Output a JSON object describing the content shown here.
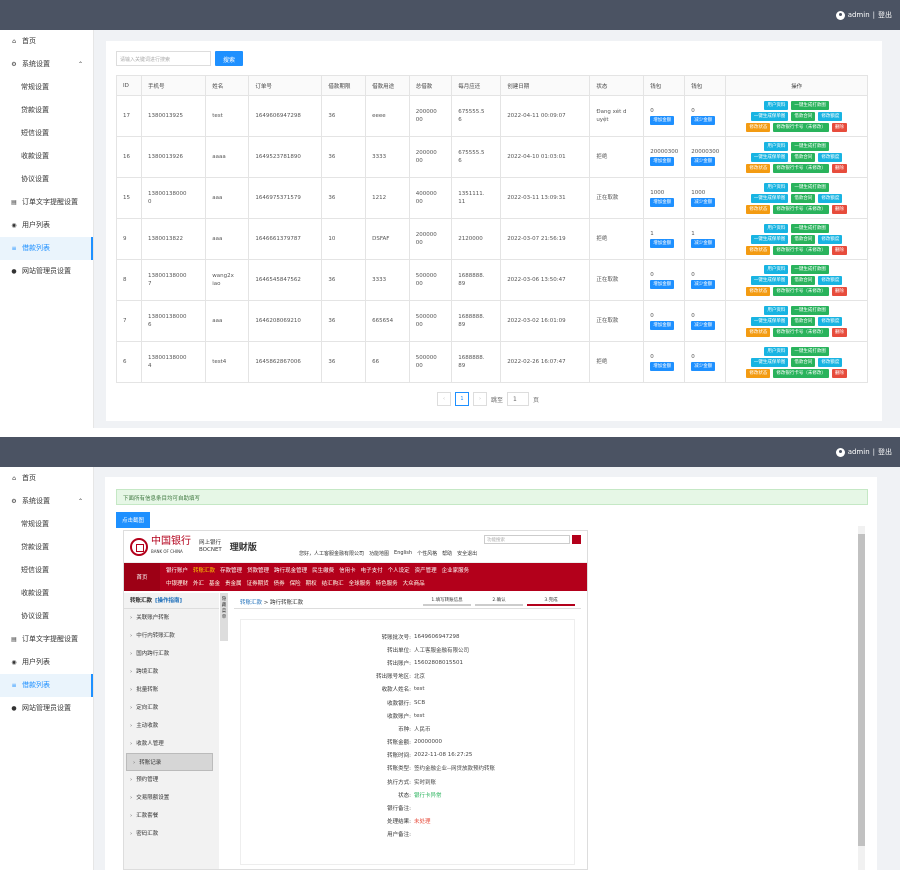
{
  "header": {
    "user": "admin",
    "logout": "登出"
  },
  "sidebar": {
    "items": [
      {
        "label": "首页",
        "icon": "home-icon",
        "sub": false,
        "caret": false,
        "active": false
      },
      {
        "label": "系统设置",
        "icon": "gear-icon",
        "sub": false,
        "caret": true,
        "active": false
      },
      {
        "label": "常规设置",
        "sub": true
      },
      {
        "label": "贷款设置",
        "sub": true
      },
      {
        "label": "短信设置",
        "sub": true
      },
      {
        "label": "收款设置",
        "sub": true
      },
      {
        "label": "协议设置",
        "sub": true
      },
      {
        "label": "订单文字提醒设置",
        "icon": "doc-icon",
        "sub": false
      },
      {
        "label": "用户列表",
        "icon": "eye-icon",
        "sub": false
      },
      {
        "label": "借款列表",
        "icon": "list-icon",
        "sub": false,
        "active": true
      },
      {
        "label": "网站管理员设置",
        "icon": "user-icon",
        "sub": false
      }
    ]
  },
  "screenA": {
    "search": {
      "placeholder": "请输入关键词进行搜索",
      "button": "搜索"
    },
    "columns": [
      "ID",
      "手机号",
      "姓名",
      "订单号",
      "借款期限",
      "借款用途",
      "总借款",
      "每月应还",
      "创建日期",
      "状态",
      "钱包",
      "钱包",
      "操作"
    ],
    "rows": [
      {
        "id": "17",
        "phone": "1380013925",
        "name": "test",
        "order": "1649606947298",
        "term": "36",
        "use": "eeee",
        "total": "200000\n00",
        "monthly": "675555.5\n6",
        "date": "2022-04-11 00:09:07",
        "status": "Đang xét d\nuyệt",
        "w1": "0",
        "w2": "0"
      },
      {
        "id": "16",
        "phone": "1380013926",
        "name": "aaaa",
        "order": "1649523781890",
        "term": "36",
        "use": "3333",
        "total": "200000\n00",
        "monthly": "675555.5\n6",
        "date": "2022-04-10 01:03:01",
        "status": "拒绝",
        "w1": "20000300",
        "w2": "20000300"
      },
      {
        "id": "15",
        "phone": "13800138000\n0",
        "name": "aaa",
        "order": "1646975371579",
        "term": "36",
        "use": "1212",
        "total": "400000\n00",
        "monthly": "1351111.\n11",
        "date": "2022-03-11 13:09:31",
        "status": "正在取款",
        "w1": "1000",
        "w2": "1000"
      },
      {
        "id": "9",
        "phone": "1380013822",
        "name": "aaa",
        "order": "1646661379787",
        "term": "10",
        "use": "DSFAF",
        "total": "200000\n00",
        "monthly": "2120000",
        "date": "2022-03-07 21:56:19",
        "status": "拒绝",
        "w1": "1",
        "w2": "1"
      },
      {
        "id": "8",
        "phone": "13800138000\n7",
        "name": "wang2x\niao",
        "order": "1646545847562",
        "term": "36",
        "use": "3333",
        "total": "500000\n00",
        "monthly": "1688888.\n89",
        "date": "2022-03-06 13:50:47",
        "status": "正在取款",
        "w1": "0",
        "w2": "0"
      },
      {
        "id": "7",
        "phone": "13800138000\n6",
        "name": "aaa",
        "order": "1646208069210",
        "term": "36",
        "use": "665654",
        "total": "500000\n00",
        "monthly": "1688888.\n89",
        "date": "2022-03-02 16:01:09",
        "status": "正在取款",
        "w1": "0",
        "w2": "0"
      },
      {
        "id": "6",
        "phone": "13800138000\n4",
        "name": "test4",
        "order": "1645862867006",
        "term": "36",
        "use": "66",
        "total": "500000\n00",
        "monthly": "1688888.\n89",
        "date": "2022-02-26 16:07:47",
        "status": "拒绝",
        "w1": "0",
        "w2": "0"
      }
    ],
    "wallet_add": "增加金额",
    "wallet_sub": "减少金额",
    "ops": {
      "user": "用户资料",
      "gen_contract": "一键生成打款图",
      "gen_proof": "一键生成保单图",
      "contract": "借款合同",
      "edit_quota": "修改额度",
      "edit_status": "修改状态",
      "edit_card": "修改银行卡号（未修改）",
      "delete": "删除"
    },
    "pager": {
      "prev": "‹",
      "page": "1",
      "next": "›",
      "goto": "跳至",
      "input": "1",
      "unit": "页"
    }
  },
  "screenB": {
    "notice": "下面所有信息条目均可自助填写",
    "shot_button": "点击截图",
    "bank": {
      "name": "中国银行",
      "name_en": "BANK OF CHINA",
      "net": "网上银行",
      "net_en": "BOCNET",
      "version": "理财版",
      "search_placeholder": "功能搜索",
      "links": [
        "您好，人工客服金融有限公司",
        "功能地图",
        "English",
        "个性风格",
        "帮助",
        "安全退出"
      ],
      "home": "首页",
      "menu1": [
        "银行账户",
        "转账汇款",
        "存款管理",
        "贷款管理",
        "跨行现金管理",
        "民生缴费",
        "信用卡",
        "电子支付",
        "个人设定",
        "资产管理",
        "企业家服务"
      ],
      "menu2": [
        "中银理财",
        "外汇",
        "基金",
        "贵金属",
        "证券期货",
        "债券",
        "保险",
        "期权",
        "结汇购汇",
        "全球服务",
        "特色服务",
        "大众商品"
      ],
      "left_title": "转账汇款",
      "left_help": "[操作指南]",
      "left_items": [
        "关联账户转账",
        "中行内转账汇款",
        "国内跨行汇款",
        "跨境汇款",
        "批量转账",
        "定向汇款",
        "主动收款",
        "收款人管理",
        "转账记录",
        "预约管理",
        "交易限额设置",
        "汇款套餐",
        "密码汇款"
      ],
      "tab_side": "隐藏菜单",
      "crumb": "转账汇款",
      "crumb2": "跨行转账汇款",
      "steps": [
        "1.填写转账信息",
        "2.确认",
        "3.完成"
      ],
      "details": [
        {
          "k": "转账批次号:",
          "v": "1649606947298"
        },
        {
          "k": "转出单位:",
          "v": "人工客服金融有限公司"
        },
        {
          "k": "转出账户:",
          "v": "15602808015501"
        },
        {
          "k": "转出账号地区:",
          "v": "北京"
        },
        {
          "k": "收款人姓名:",
          "v": "test"
        },
        {
          "k": "收款银行:",
          "v": "SCB"
        },
        {
          "k": "收款账户:",
          "v": "test"
        },
        {
          "k": "币种:",
          "v": "人民币"
        },
        {
          "k": "转账金额:",
          "v": "20000000"
        },
        {
          "k": "转账时间:",
          "v": "2022-11-08 16:27:25"
        },
        {
          "k": "转账类型:",
          "v": "签约金融企业--网贷放款预约转账"
        },
        {
          "k": "执行方式:",
          "v": "实时到账"
        },
        {
          "k": "状态:",
          "v": "银行卡异常"
        },
        {
          "k": "银行备注:",
          "v": ""
        },
        {
          "k": "处理结果:",
          "v": "未处理"
        },
        {
          "k": "用户备注:",
          "v": ""
        }
      ]
    }
  }
}
